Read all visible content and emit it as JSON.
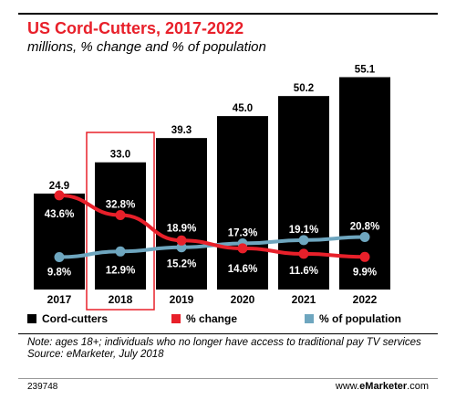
{
  "header": {
    "title": "US Cord-Cutters, 2017-2022",
    "subtitle": "millions, % change and % of population"
  },
  "chart_data": {
    "type": "bar",
    "title": "US Cord-Cutters, 2017-2022",
    "subtitle": "millions, % change and % of population",
    "categories": [
      "2017",
      "2018",
      "2019",
      "2020",
      "2021",
      "2022"
    ],
    "series": [
      {
        "name": "Cord-cutters",
        "type": "bar",
        "color": "#000000",
        "values": [
          24.9,
          33.0,
          39.3,
          45.0,
          50.2,
          55.1
        ],
        "labels": [
          "24.9",
          "33.0",
          "39.3",
          "45.0",
          "50.2",
          "55.1"
        ]
      },
      {
        "name": "% change",
        "type": "line",
        "color": "#e8202a",
        "values": [
          43.6,
          32.8,
          18.9,
          14.6,
          11.6,
          9.9
        ],
        "labels": [
          "43.6%",
          "32.8%",
          "18.9%",
          "14.6%",
          "11.6%",
          "9.9%"
        ]
      },
      {
        "name": "% of population",
        "type": "line",
        "color": "#6ea6bf",
        "values": [
          9.8,
          12.9,
          15.2,
          17.3,
          19.1,
          20.8
        ],
        "labels": [
          "9.8%",
          "12.9%",
          "15.2%",
          "17.3%",
          "19.1%",
          "20.8%"
        ]
      }
    ],
    "highlight_category": "2018",
    "highlight_color": "#e8202a",
    "grid": false,
    "legend_position": "bottom"
  },
  "legend": {
    "items": [
      {
        "label": "Cord-cutters",
        "color": "#000000"
      },
      {
        "label": "% change",
        "color": "#e8202a"
      },
      {
        "label": "% of population",
        "color": "#6ea6bf"
      }
    ]
  },
  "footer": {
    "note": "Note: ages 18+; individuals who no longer have access to traditional pay TV services",
    "source": "Source: eMarketer, July 2018",
    "chart_id": "239748",
    "brand_prefix": "www.",
    "brand_bold": "eMarketer",
    "brand_suffix": ".com"
  }
}
